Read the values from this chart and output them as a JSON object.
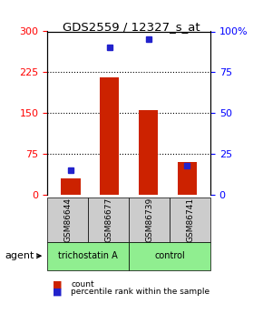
{
  "title": "GDS2559 / 12327_s_at",
  "samples": [
    "GSM86644",
    "GSM86677",
    "GSM86739",
    "GSM86741"
  ],
  "count_values": [
    30,
    215,
    155,
    60
  ],
  "percentile_values": [
    15,
    90,
    95,
    18
  ],
  "groups": [
    "trichostatin A",
    "trichostatin A",
    "control",
    "control"
  ],
  "group_colors": {
    "trichostatin A": "#90ee90",
    "control": "#90ee90"
  },
  "left_ylim": [
    0,
    300
  ],
  "right_ylim": [
    0,
    100
  ],
  "left_yticks": [
    0,
    75,
    150,
    225,
    300
  ],
  "right_yticks": [
    0,
    25,
    50,
    75,
    100
  ],
  "right_yticklabels": [
    "0",
    "25",
    "50",
    "75",
    "100%"
  ],
  "bar_color": "#cc2200",
  "dot_color": "#2222cc",
  "grid_color": "#555555",
  "background_color": "#ffffff",
  "label_box_color": "#cccccc",
  "agent_label": "agent",
  "legend_count": "count",
  "legend_pct": "percentile rank within the sample"
}
